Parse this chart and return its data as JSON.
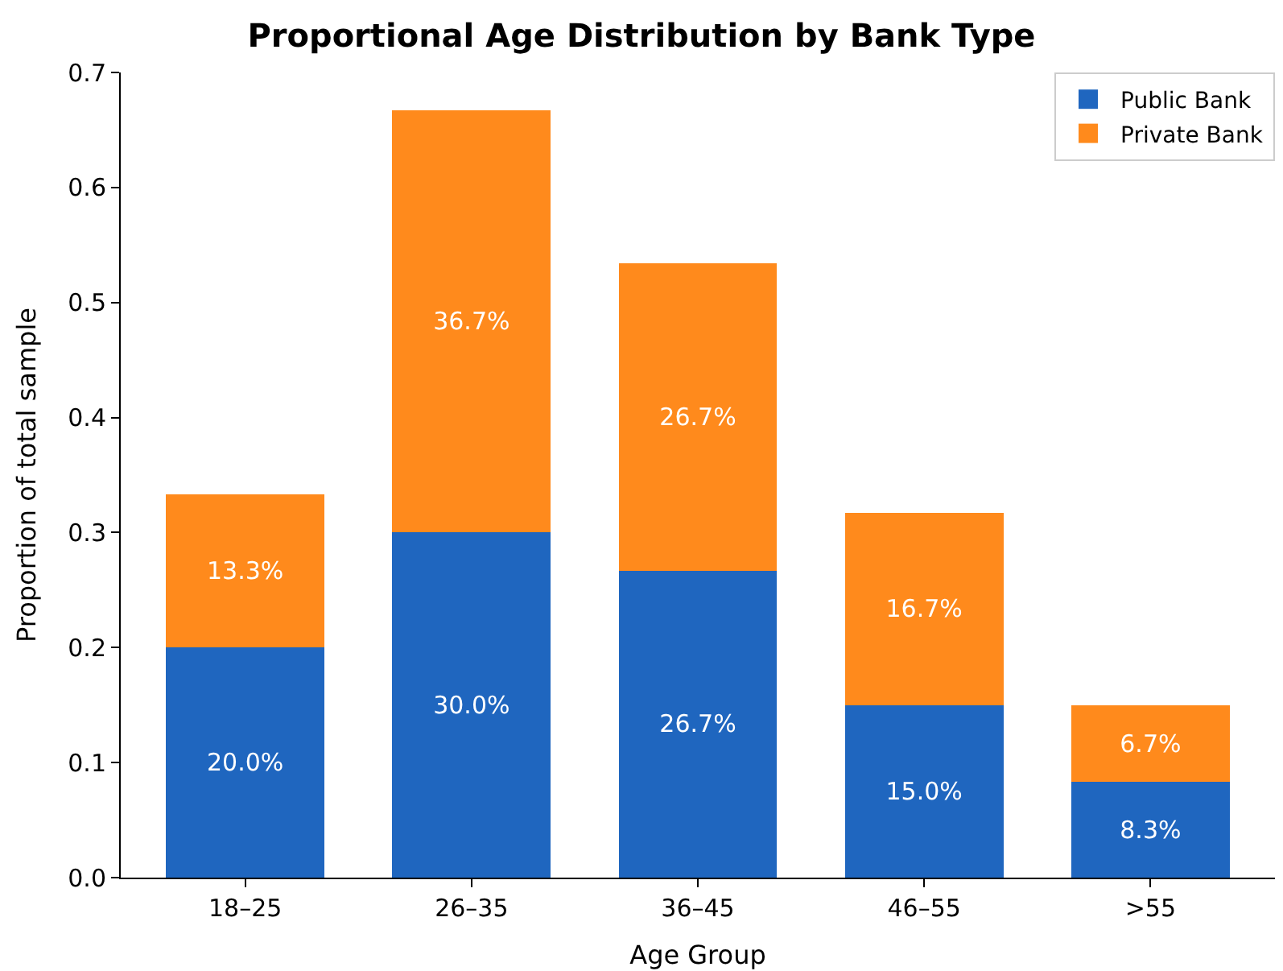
{
  "chart_data": {
    "type": "bar",
    "title": "Proportional Age Distribution by Bank Type",
    "xlabel": "Age Group",
    "ylabel": "Proportion of total sample",
    "categories": [
      "18–25",
      "26–35",
      "36–45",
      "46–55",
      ">55"
    ],
    "stacked": true,
    "series": [
      {
        "name": "Public Bank",
        "color": "#1f66bf",
        "values": [
          0.2,
          0.3,
          0.267,
          0.15,
          0.083
        ],
        "value_labels": [
          "20.0%",
          "30.0%",
          "26.7%",
          "15.0%",
          "8.3%"
        ]
      },
      {
        "name": "Private Bank",
        "color": "#ff8a1c",
        "values": [
          0.133,
          0.367,
          0.267,
          0.167,
          0.067
        ],
        "value_labels": [
          "13.3%",
          "36.7%",
          "26.7%",
          "16.7%",
          "6.7%"
        ]
      }
    ],
    "ylim": [
      0,
      0.7
    ],
    "yticks": [
      {
        "value": 0,
        "label": "0.0"
      },
      0.1,
      0.2,
      0.3,
      0.4,
      0.5,
      0.6,
      0.7
    ],
    "legend": "top right"
  }
}
